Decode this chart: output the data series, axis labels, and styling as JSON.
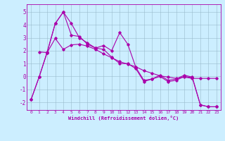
{
  "xlabel": "Windchill (Refroidissement éolien,°C)",
  "background_color": "#cceeff",
  "line_color": "#aa00aa",
  "grid_color": "#99bbcc",
  "xlim": [
    -0.5,
    23.5
  ],
  "ylim": [
    -2.6,
    5.6
  ],
  "xticks": [
    0,
    1,
    2,
    3,
    4,
    5,
    6,
    7,
    8,
    9,
    10,
    11,
    12,
    13,
    14,
    15,
    16,
    17,
    18,
    19,
    20,
    21,
    22,
    23
  ],
  "yticks": [
    -2,
    -1,
    0,
    1,
    2,
    3,
    4,
    5
  ],
  "series1": [
    [
      0,
      -1.8
    ],
    [
      1,
      -0.05
    ],
    [
      2,
      1.9
    ],
    [
      3,
      4.1
    ],
    [
      4,
      5.0
    ],
    [
      5,
      4.1
    ],
    [
      6,
      3.0
    ],
    [
      7,
      2.6
    ],
    [
      8,
      2.2
    ],
    [
      9,
      2.4
    ],
    [
      10,
      2.0
    ],
    [
      11,
      3.4
    ],
    [
      12,
      2.5
    ],
    [
      13,
      0.7
    ],
    [
      14,
      -0.3
    ],
    [
      15,
      -0.2
    ],
    [
      16,
      0.1
    ],
    [
      17,
      -0.3
    ],
    [
      18,
      -0.2
    ],
    [
      19,
      0.1
    ],
    [
      20,
      -0.05
    ],
    [
      21,
      -2.2
    ],
    [
      22,
      -2.35
    ],
    [
      23,
      -2.35
    ]
  ],
  "series2": [
    [
      0,
      -1.8
    ],
    [
      1,
      -0.05
    ],
    [
      2,
      1.85
    ],
    [
      3,
      4.1
    ],
    [
      4,
      5.0
    ],
    [
      5,
      3.2
    ],
    [
      6,
      3.1
    ],
    [
      7,
      2.5
    ],
    [
      8,
      2.2
    ],
    [
      9,
      2.1
    ],
    [
      10,
      1.5
    ],
    [
      11,
      1.0
    ],
    [
      12,
      1.0
    ],
    [
      13,
      0.6
    ],
    [
      14,
      -0.4
    ],
    [
      15,
      -0.2
    ],
    [
      16,
      0.0
    ],
    [
      17,
      -0.4
    ],
    [
      18,
      -0.3
    ],
    [
      19,
      0.0
    ],
    [
      20,
      -0.1
    ],
    [
      21,
      -2.2
    ],
    [
      22,
      -2.35
    ],
    [
      23,
      -2.35
    ]
  ],
  "series3": [
    [
      1,
      1.9
    ],
    [
      2,
      1.85
    ],
    [
      3,
      2.95
    ],
    [
      4,
      2.1
    ],
    [
      5,
      2.45
    ],
    [
      6,
      2.5
    ],
    [
      7,
      2.35
    ],
    [
      8,
      2.1
    ],
    [
      9,
      1.75
    ],
    [
      10,
      1.45
    ],
    [
      11,
      1.15
    ],
    [
      12,
      0.95
    ],
    [
      13,
      0.75
    ],
    [
      14,
      0.45
    ],
    [
      15,
      0.25
    ],
    [
      16,
      0.05
    ],
    [
      17,
      -0.05
    ],
    [
      18,
      -0.15
    ],
    [
      19,
      -0.05
    ],
    [
      20,
      -0.15
    ],
    [
      21,
      -0.15
    ],
    [
      22,
      -0.15
    ],
    [
      23,
      -0.15
    ]
  ],
  "figsize": [
    3.2,
    2.0
  ],
  "dpi": 100
}
